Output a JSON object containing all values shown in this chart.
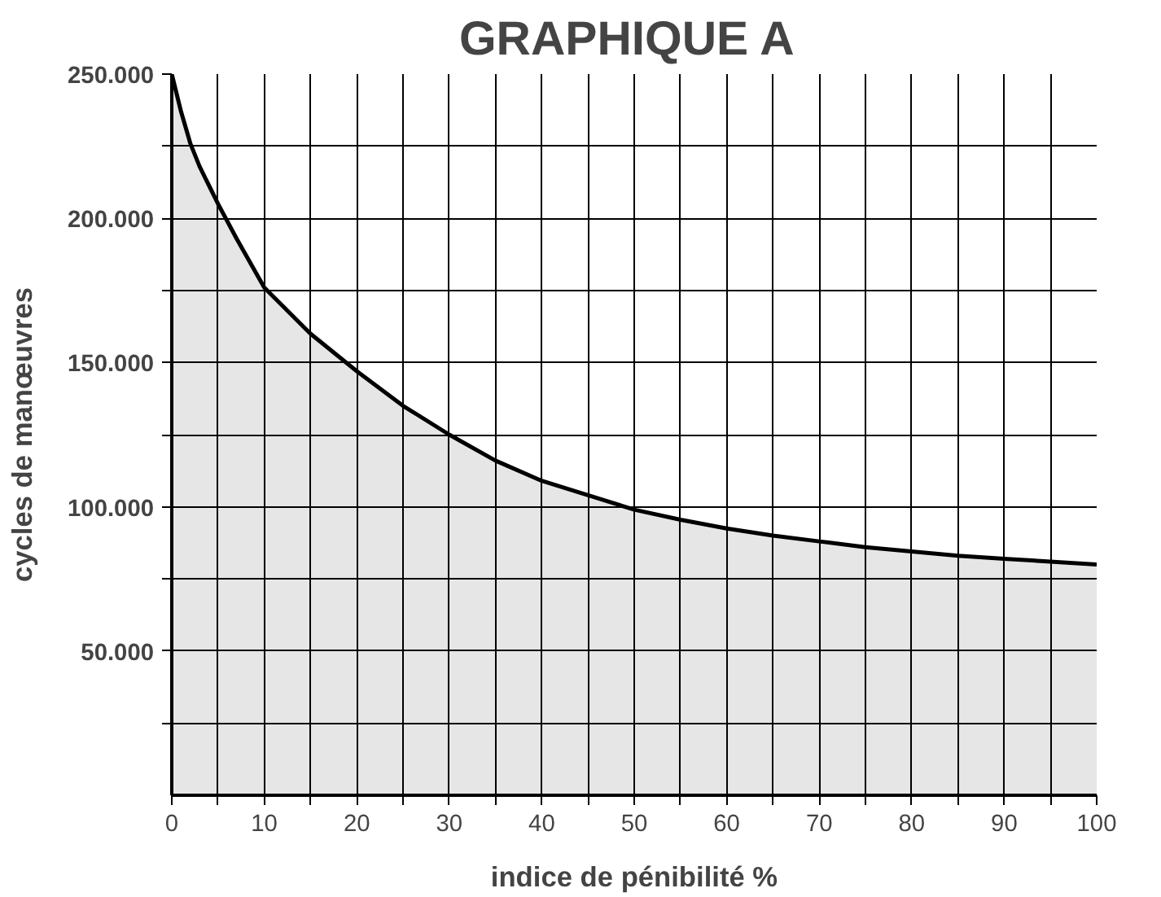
{
  "chart_data": {
    "type": "area",
    "title": "GRAPHIQUE  A",
    "xlabel": "indice de pénibilité %",
    "ylabel": "cycles de manœuvres",
    "x": [
      0,
      1,
      2,
      3,
      5,
      7,
      10,
      15,
      20,
      25,
      30,
      35,
      40,
      45,
      50,
      55,
      60,
      65,
      70,
      75,
      80,
      85,
      90,
      95,
      100
    ],
    "series": [
      {
        "color": "#e6e6e6",
        "values": [
          250000,
          237000,
          226000,
          218000,
          205000,
          193000,
          176000,
          160000,
          147000,
          135000,
          125000,
          116000,
          109000,
          104000,
          99000,
          95500,
          92500,
          90000,
          88000,
          86000,
          84500,
          83000,
          82000,
          81000,
          80000
        ]
      }
    ],
    "xlim": [
      0,
      100
    ],
    "ylim": [
      0,
      250000
    ],
    "xticks": [
      0,
      {
        "value": 5,
        "label": null
      },
      10,
      {
        "value": 15,
        "label": null
      },
      20,
      {
        "value": 25,
        "label": null
      },
      30,
      {
        "value": 35,
        "label": null
      },
      40,
      {
        "value": 45,
        "label": null
      },
      50,
      {
        "value": 55,
        "label": null
      },
      60,
      {
        "value": 65,
        "label": null
      },
      70,
      {
        "value": 75,
        "label": null
      },
      80,
      {
        "value": 85,
        "label": null
      },
      90,
      {
        "value": 95,
        "label": null
      },
      100
    ],
    "yticks": [
      {
        "value": 25000,
        "label": null
      },
      {
        "value": 50000,
        "label": "50.000"
      },
      {
        "value": 75000,
        "label": null
      },
      {
        "value": 100000,
        "label": "100.000"
      },
      {
        "value": 125000,
        "label": null
      },
      {
        "value": 150000,
        "label": "150.000"
      },
      {
        "value": 175000,
        "label": null
      },
      {
        "value": 200000,
        "label": "200.000"
      },
      {
        "value": 225000,
        "label": null
      },
      {
        "value": 250000,
        "label": "250.000"
      }
    ],
    "grid": true
  }
}
